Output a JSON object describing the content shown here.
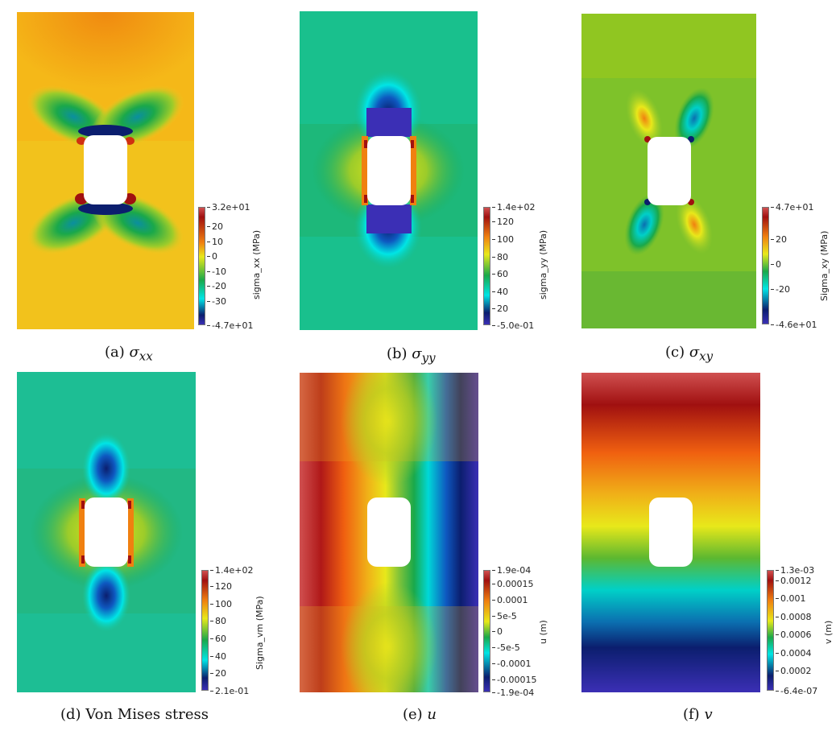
{
  "figure": {
    "panels": [
      {
        "id": "a",
        "caption_prefix": "(a) ",
        "caption_symbol": "σ",
        "caption_sub": "xx",
        "colorbar": {
          "title": "sigma_xx (MPa)",
          "max_label": "3.2e+01",
          "min_label": "-4.7e+01",
          "ticks": [
            "20",
            "10",
            "0",
            "-10",
            "-20",
            "-30"
          ],
          "range": [
            -47,
            32
          ],
          "tick_values": [
            20,
            10,
            0,
            -10,
            -20,
            -30
          ]
        }
      },
      {
        "id": "b",
        "caption_prefix": "(b) ",
        "caption_symbol": "σ",
        "caption_sub": "yy",
        "colorbar": {
          "title": "sigma_yy (MPa)",
          "max_label": "1.4e+02",
          "min_label": "-5.0e-01",
          "ticks": [
            "120",
            "100",
            "80",
            "60",
            "40",
            "20"
          ],
          "range": [
            -0.5,
            140
          ],
          "tick_values": [
            120,
            100,
            80,
            60,
            40,
            20
          ]
        }
      },
      {
        "id": "c",
        "caption_prefix": "(c) ",
        "caption_symbol": "σ",
        "caption_sub": "xy",
        "colorbar": {
          "title": "Sigma_xy (MPa)",
          "max_label": "4.7e+01",
          "min_label": "-4.6e+01",
          "ticks": [
            "20",
            "0",
            "-20"
          ],
          "range": [
            -46,
            47
          ],
          "tick_values": [
            20,
            0,
            -20
          ]
        }
      },
      {
        "id": "d",
        "caption_prefix": "(d) Von Mises stress",
        "caption_symbol": "",
        "caption_sub": "",
        "colorbar": {
          "title": "Sigma_vm (MPa)",
          "max_label": "1.4e+02",
          "min_label": "2.1e-01",
          "ticks": [
            "120",
            "100",
            "80",
            "60",
            "40",
            "20"
          ],
          "range": [
            0.21,
            140
          ],
          "tick_values": [
            120,
            100,
            80,
            60,
            40,
            20
          ]
        }
      },
      {
        "id": "e",
        "caption_prefix": "(e) ",
        "caption_symbol": "u",
        "caption_sub": "",
        "colorbar": {
          "title": "u (m)",
          "max_label": "1.9e-04",
          "min_label": "-1.9e-04",
          "ticks": [
            "0.00015",
            "0.0001",
            "5e-5",
            "0",
            "-5e-5",
            "-0.0001",
            "-0.00015"
          ],
          "range": [
            -0.00019,
            0.00019
          ],
          "tick_values": [
            0.00015,
            0.0001,
            5e-05,
            0,
            -5e-05,
            -0.0001,
            -0.00015
          ]
        }
      },
      {
        "id": "f",
        "caption_prefix": "(f) ",
        "caption_symbol": "v",
        "caption_sub": "",
        "colorbar": {
          "title": "v (m)",
          "max_label": "1.3e-03",
          "min_label": "-6.4e-07",
          "ticks": [
            "0.0012",
            "0.001",
            "0.0008",
            "0.0006",
            "0.0004",
            "0.0002"
          ],
          "range": [
            -6.4e-07,
            0.0013
          ],
          "tick_values": [
            0.0012,
            0.001,
            0.0008,
            0.0006,
            0.0004,
            0.0002
          ]
        }
      }
    ],
    "colormap": [
      "#3b2fb5",
      "#0b1e6e",
      "#00e5e5",
      "#1aa84a",
      "#e8e81a",
      "#f08010",
      "#a01010",
      "#d05050"
    ]
  }
}
